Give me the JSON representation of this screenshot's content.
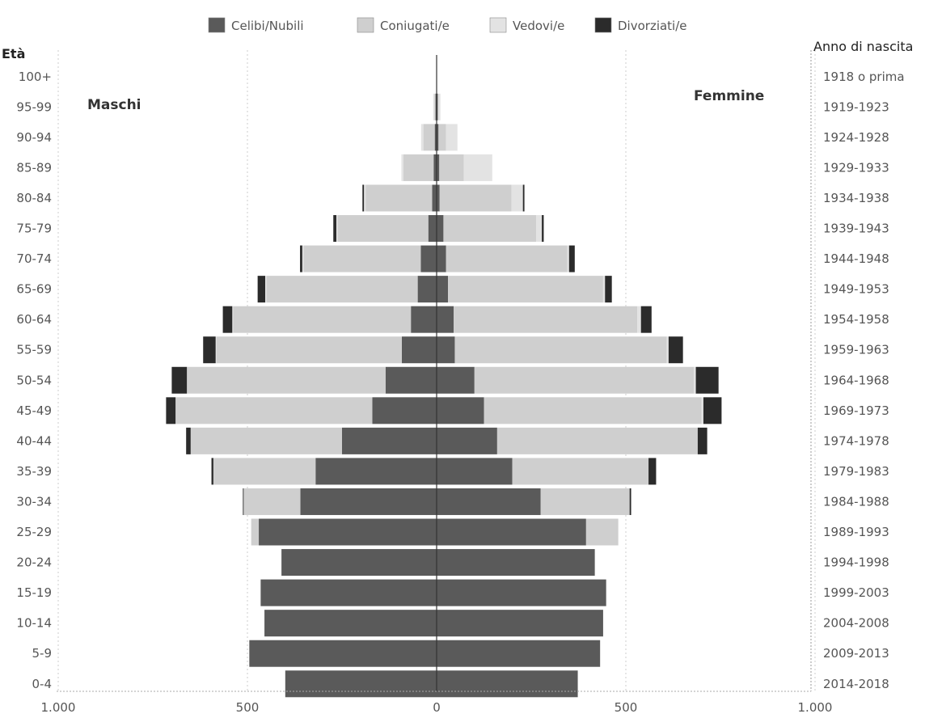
{
  "chart_data": {
    "type": "bar",
    "orientation": "horizontal-population-pyramid",
    "title": "",
    "legend": [
      {
        "name": "Celibi/Nubili",
        "color": "#5a5a5a"
      },
      {
        "name": "Coniugati/e",
        "color": "#cfcfcf"
      },
      {
        "name": "Vedovi/e",
        "color": "#e3e3e3"
      },
      {
        "name": "Divorziati/e",
        "color": "#2b2b2b"
      }
    ],
    "legend_position": "top",
    "left_label": "Maschi",
    "right_label": "Femmine",
    "ylabel_left": "Età",
    "ylabel_right": "Anno di nascita",
    "xlim": [
      -1000,
      1000
    ],
    "x_ticks": [
      -1000,
      -500,
      0,
      500,
      1000
    ],
    "x_tick_labels": [
      "1.000",
      "500",
      "0",
      "500",
      "1.000"
    ],
    "grid": "vertical",
    "age_groups": [
      "100+",
      "95-99",
      "90-94",
      "85-89",
      "80-84",
      "75-79",
      "70-74",
      "65-69",
      "60-64",
      "55-59",
      "50-54",
      "45-49",
      "40-44",
      "35-39",
      "30-34",
      "25-29",
      "20-24",
      "15-19",
      "10-14",
      "5-9",
      "0-4"
    ],
    "birth_years": [
      "1918 o prima",
      "1919-1923",
      "1924-1928",
      "1929-1933",
      "1934-1938",
      "1939-1943",
      "1944-1948",
      "1949-1953",
      "1954-1958",
      "1959-1963",
      "1964-1968",
      "1969-1973",
      "1974-1978",
      "1979-1983",
      "1984-1988",
      "1989-1993",
      "1994-1998",
      "1999-2003",
      "2004-2008",
      "2009-2013",
      "2014-2018"
    ],
    "series": {
      "males": [
        {
          "name": "Celibi/Nubili",
          "values": [
            0,
            3,
            5,
            8,
            12,
            22,
            42,
            50,
            68,
            92,
            135,
            170,
            250,
            320,
            360,
            470,
            410,
            465,
            455,
            495,
            400
          ]
        },
        {
          "name": "Coniugati/e",
          "values": [
            0,
            3,
            30,
            80,
            175,
            240,
            310,
            400,
            470,
            490,
            525,
            520,
            400,
            270,
            150,
            20,
            0,
            0,
            0,
            0,
            0
          ]
        },
        {
          "name": "Vedovi/e",
          "values": [
            0,
            3,
            6,
            5,
            5,
            3,
            3,
            3,
            2,
            2,
            0,
            0,
            0,
            0,
            0,
            0,
            0,
            0,
            0,
            0,
            0
          ]
        },
        {
          "name": "Divorziati/e",
          "values": [
            0,
            0,
            0,
            0,
            4,
            8,
            6,
            20,
            25,
            33,
            40,
            25,
            12,
            5,
            2,
            0,
            0,
            0,
            0,
            0,
            0
          ]
        }
      ],
      "females": [
        {
          "name": "Celibi/Nubili",
          "values": [
            0,
            3,
            5,
            7,
            8,
            18,
            25,
            30,
            45,
            48,
            100,
            125,
            160,
            200,
            275,
            395,
            418,
            448,
            440,
            432,
            373
          ]
        },
        {
          "name": "Coniugati/e",
          "values": [
            0,
            2,
            20,
            65,
            190,
            245,
            320,
            410,
            485,
            560,
            580,
            575,
            530,
            360,
            235,
            85,
            0,
            0,
            0,
            0,
            0
          ]
        },
        {
          "name": "Vedovi/e",
          "values": [
            0,
            5,
            30,
            75,
            30,
            15,
            5,
            5,
            10,
            5,
            5,
            5,
            0,
            0,
            0,
            0,
            0,
            0,
            0,
            0,
            0
          ]
        },
        {
          "name": "Divorziati/e",
          "values": [
            0,
            0,
            0,
            0,
            4,
            5,
            15,
            18,
            28,
            38,
            60,
            48,
            25,
            20,
            4,
            0,
            0,
            0,
            0,
            0,
            0
          ]
        }
      ]
    }
  }
}
